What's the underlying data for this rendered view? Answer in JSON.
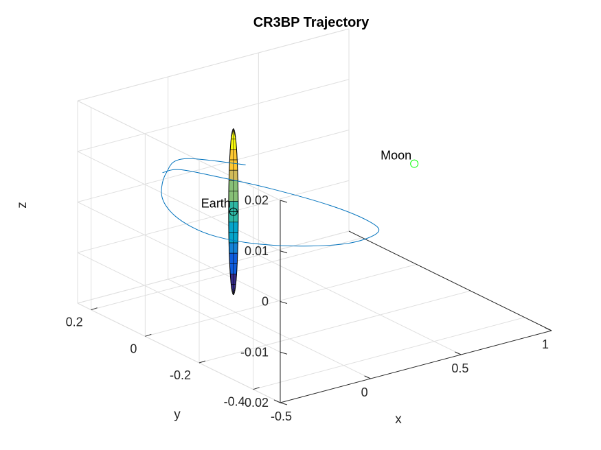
{
  "chart_data": {
    "type": "line",
    "title": "CR3BP Trajectory",
    "xlabel": "x",
    "ylabel": "y",
    "zlabel": "z",
    "xlim": [
      -0.5,
      1
    ],
    "ylim": [
      -0.5,
      0.25
    ],
    "zlim": [
      -0.02,
      0.02
    ],
    "x_ticks": [
      "-0.5",
      "0",
      "0.5",
      "1"
    ],
    "y_ticks": [
      "-0.4",
      "-0.2",
      "0",
      "0.2"
    ],
    "z_ticks": [
      "-0.02",
      "-0.01",
      "0",
      "0.01",
      "0.02"
    ],
    "grid": true,
    "series": [
      {
        "color": "#0072BD",
        "points": [
          [
            0.19,
            0.09,
            0.005
          ],
          [
            0.01,
            0.2,
            0.005
          ],
          [
            -0.1,
            0.19,
            0.0035
          ],
          [
            -0.2,
            0.14,
            0.0015
          ],
          [
            -0.255,
            0.07,
            0.0005
          ],
          [
            -0.265,
            -0.01,
            -0.0002
          ],
          [
            -0.225,
            -0.08,
            -0.0008
          ],
          [
            -0.13,
            -0.16,
            -0.001
          ],
          [
            0.02,
            -0.24,
            -0.0008
          ],
          [
            0.19,
            -0.3,
            -0.0002
          ],
          [
            0.34,
            -0.3,
            0.0005
          ],
          [
            0.36,
            -0.25,
            0.0012
          ],
          [
            0.3,
            -0.15,
            0.0022
          ],
          [
            0.16,
            -0.02,
            0.0035
          ],
          [
            0.02,
            0.08,
            0.0045
          ],
          [
            -0.1,
            0.14,
            0.0055
          ],
          [
            -0.21,
            0.13,
            0.0062
          ]
        ]
      }
    ],
    "bodies": [
      {
        "name": "Earth",
        "x": -0.012,
        "y": 0,
        "z": 0,
        "marker_color": "#000000"
      },
      {
        "name": "Moon",
        "x": 0.988,
        "y": 0,
        "z": 0,
        "marker_color": "#00ff00"
      }
    ],
    "surface": {
      "center": [
        -0.012,
        0,
        0
      ],
      "colormap": "parula",
      "edge_color": "#000000"
    }
  }
}
